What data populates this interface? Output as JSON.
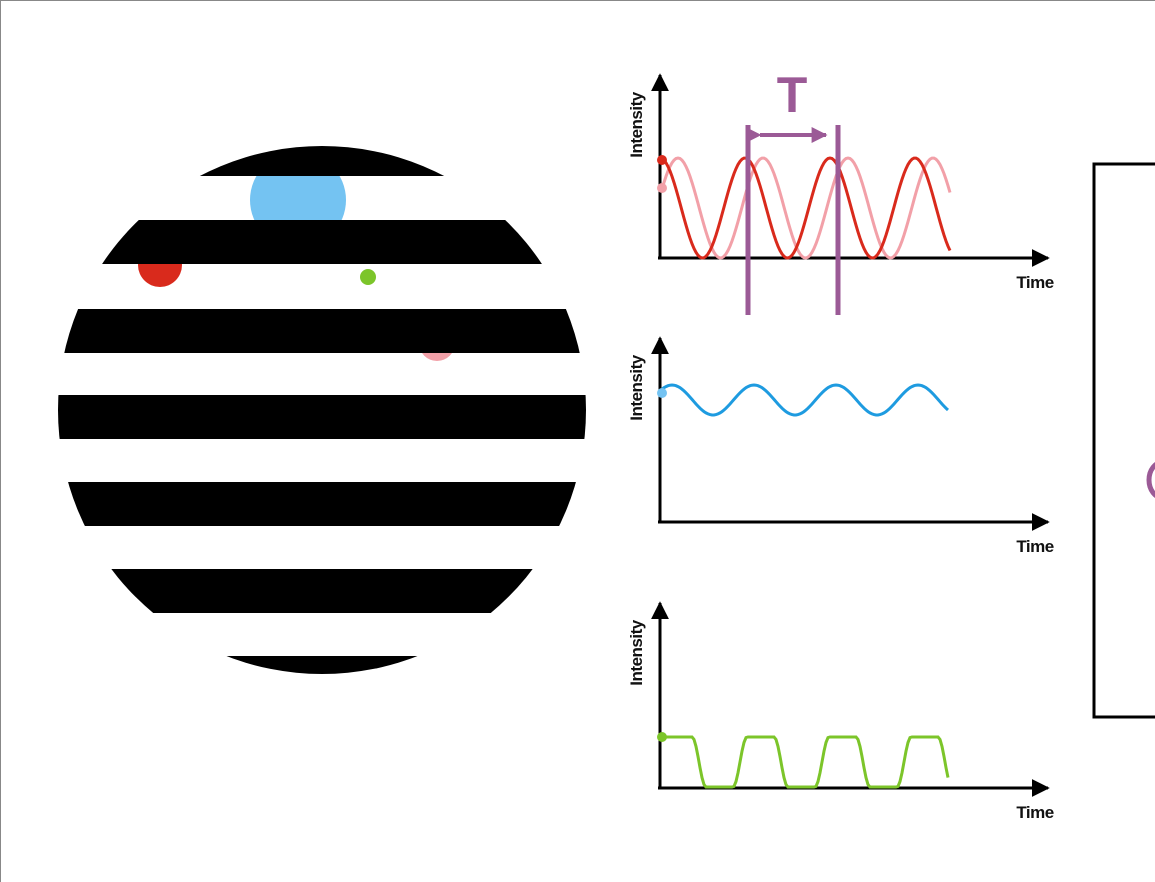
{
  "period_label": "T",
  "plots": [
    {
      "y_label": "Intensity",
      "x_label": "Time"
    },
    {
      "y_label": "Intensity",
      "x_label": "Time"
    },
    {
      "y_label": "Intensity",
      "x_label": "Time"
    }
  ]
}
